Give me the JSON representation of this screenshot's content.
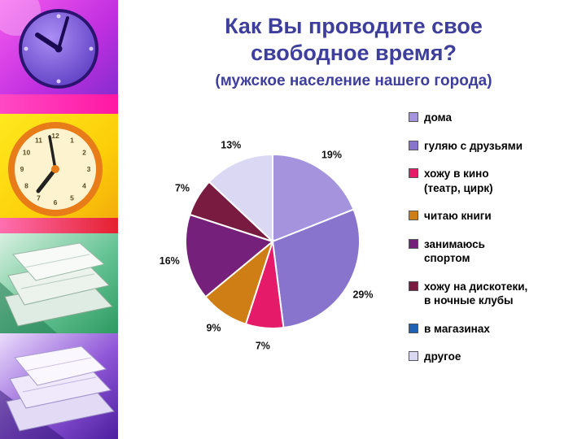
{
  "slide": {
    "title_line1": "Как Вы проводите свое",
    "title_line2": "свободное время?",
    "subtitle": "(мужское население нашего города)"
  },
  "decor": {
    "left_strip_images": [
      "purple-clock-photo",
      "yellow-clock-photo",
      "green-papers-photo",
      "purple-papers-photo"
    ],
    "clock_numbers": [
      "12",
      "1",
      "2",
      "3",
      "4",
      "5",
      "6",
      "7",
      "8",
      "9",
      "10",
      "11"
    ]
  },
  "chart_data": {
    "type": "pie",
    "title": "Как Вы проводите свое свободное время?",
    "subtitle": "(мужское население нашего города)",
    "legend_position": "right",
    "start_angle": "12 o'clock",
    "direction": "clockwise",
    "slices": [
      {
        "label": "дома",
        "display_label": "дома",
        "value": 19,
        "pct_label": "19%",
        "color": "#a593dd"
      },
      {
        "label": "гуляю с друзьями",
        "display_label": "гуляю с друзьями",
        "value": 29,
        "pct_label": "29%",
        "color": "#8874cd"
      },
      {
        "label": "хожу в кино (театр, цирк)",
        "display_label": "хожу в кино\n(театр, цирк)",
        "value": 7,
        "pct_label": "7%",
        "color": "#e51a68"
      },
      {
        "label": "читаю книги",
        "display_label": "читаю книги",
        "value": 9,
        "pct_label": "9%",
        "color": "#cf7d15"
      },
      {
        "label": "занимаюсь спортом",
        "display_label": "занимаюсь\nспортом",
        "value": 16,
        "pct_label": "16%",
        "color": "#75207b"
      },
      {
        "label": "хожу на дискотеки, в ночные клубы",
        "display_label": "хожу на дискотеки,\nв ночные клубы",
        "value": 7,
        "pct_label": "7%",
        "color": "#791b41"
      },
      {
        "label": "в магазинах",
        "display_label": "в магазинах",
        "value": 0,
        "pct_label": "",
        "color": "#1e60b4"
      },
      {
        "label": "другое",
        "display_label": "другое",
        "value": 13,
        "pct_label": "13%",
        "color": "#dbd8f3"
      }
    ]
  }
}
